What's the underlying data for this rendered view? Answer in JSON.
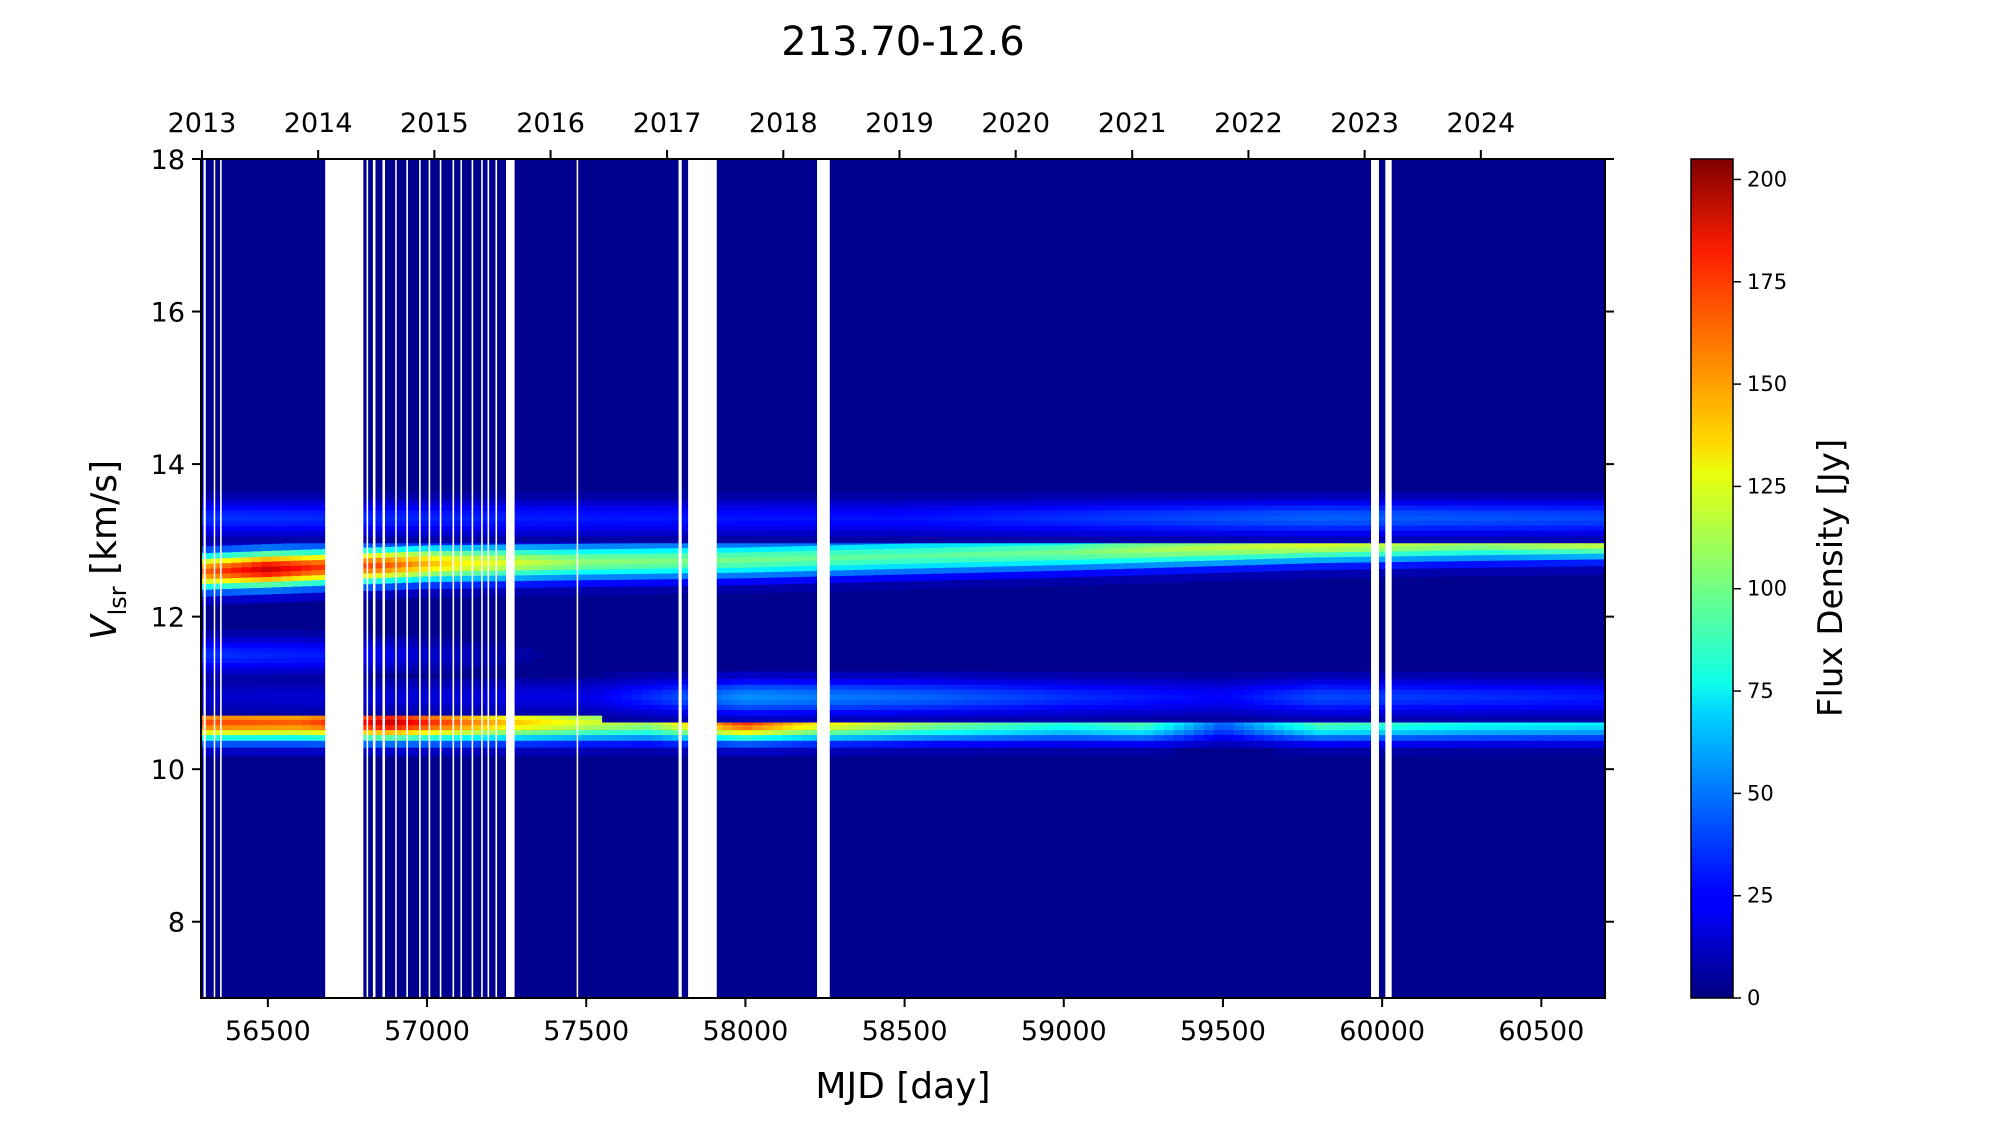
{
  "chart_data": {
    "type": "heatmap",
    "title": "213.70-12.6",
    "xlabel": "MJD [day]",
    "ylabel_main": "V",
    "ylabel_sub": "lsr",
    "ylabel_rest": " [km/s]",
    "colorbar_label": "Flux Density [Jy]",
    "colormap": "jet",
    "xlim": [
      56290,
      60700
    ],
    "ylim": [
      7,
      18
    ],
    "zlim": [
      0,
      205
    ],
    "x_ticks": [
      56500,
      57000,
      57500,
      58000,
      58500,
      59000,
      59500,
      60000,
      60500
    ],
    "y_ticks": [
      8,
      10,
      12,
      14,
      16,
      18
    ],
    "colorbar_ticks": [
      0,
      25,
      50,
      75,
      100,
      125,
      150,
      175,
      200
    ],
    "top_axis": {
      "label_values": [
        "2013",
        "2014",
        "2015",
        "2016",
        "2017",
        "2018",
        "2019",
        "2020",
        "2021",
        "2022",
        "2023",
        "2024"
      ],
      "mjd_positions": [
        56293,
        56658,
        57023,
        57388,
        57754,
        58119,
        58484,
        58849,
        59215,
        59580,
        59945,
        60310
      ]
    },
    "components": [
      {
        "velocity": 12.65,
        "flux_profile": [
          [
            56300,
            160
          ],
          [
            56500,
            190
          ],
          [
            56650,
            170
          ],
          [
            56850,
            165
          ],
          [
            57100,
            130
          ],
          [
            57500,
            105
          ],
          [
            58000,
            100
          ],
          [
            58500,
            95
          ],
          [
            59000,
            100
          ],
          [
            59300,
            110
          ],
          [
            59800,
            120
          ],
          [
            60300,
            110
          ],
          [
            60700,
            125
          ]
        ],
        "velocity_drift": [
          [
            56300,
            12.6
          ],
          [
            57000,
            12.7
          ],
          [
            58000,
            12.75
          ],
          [
            59000,
            12.85
          ],
          [
            59800,
            12.95
          ],
          [
            60700,
            13.0
          ]
        ]
      },
      {
        "velocity": 13.3,
        "flux_profile": [
          [
            56300,
            35
          ],
          [
            57500,
            30
          ],
          [
            58500,
            28
          ],
          [
            59800,
            45
          ],
          [
            60700,
            40
          ]
        ]
      },
      {
        "velocity": 10.62,
        "flux_profile": [
          [
            56300,
            165
          ],
          [
            56600,
            160
          ],
          [
            56880,
            190
          ],
          [
            57200,
            145
          ],
          [
            57500,
            120
          ],
          [
            57700,
            110
          ],
          [
            58000,
            170
          ],
          [
            58200,
            135
          ],
          [
            58600,
            105
          ],
          [
            59000,
            85
          ],
          [
            59250,
            95
          ],
          [
            59500,
            45
          ],
          [
            59800,
            95
          ],
          [
            60300,
            80
          ],
          [
            60700,
            75
          ]
        ]
      },
      {
        "velocity": 10.95,
        "flux_profile": [
          [
            56300,
            15
          ],
          [
            57500,
            20
          ],
          [
            58000,
            55
          ],
          [
            58600,
            45
          ],
          [
            59000,
            35
          ],
          [
            59500,
            25
          ],
          [
            59800,
            40
          ],
          [
            60700,
            30
          ]
        ]
      },
      {
        "velocity": 11.5,
        "flux_profile": [
          [
            56300,
            35
          ],
          [
            56700,
            30
          ],
          [
            57000,
            15
          ],
          [
            57400,
            5
          ],
          [
            60700,
            2
          ]
        ]
      }
    ],
    "data_gaps_mjd": [
      [
        56298,
        56305
      ],
      [
        56330,
        56334
      ],
      [
        56350,
        56355
      ],
      [
        56680,
        56800
      ],
      [
        56810,
        56815
      ],
      [
        56830,
        56838
      ],
      [
        56860,
        56868
      ],
      [
        56900,
        56904
      ],
      [
        56935,
        56940
      ],
      [
        56975,
        56980
      ],
      [
        57005,
        57010
      ],
      [
        57040,
        57045
      ],
      [
        57080,
        57085
      ],
      [
        57105,
        57108
      ],
      [
        57140,
        57145
      ],
      [
        57170,
        57175
      ],
      [
        57190,
        57195
      ],
      [
        57215,
        57220
      ],
      [
        57248,
        57275
      ],
      [
        57470,
        57474
      ],
      [
        57790,
        57800
      ],
      [
        57820,
        57910
      ],
      [
        58225,
        58265
      ],
      [
        59965,
        59990
      ],
      [
        60010,
        60030
      ]
    ]
  }
}
